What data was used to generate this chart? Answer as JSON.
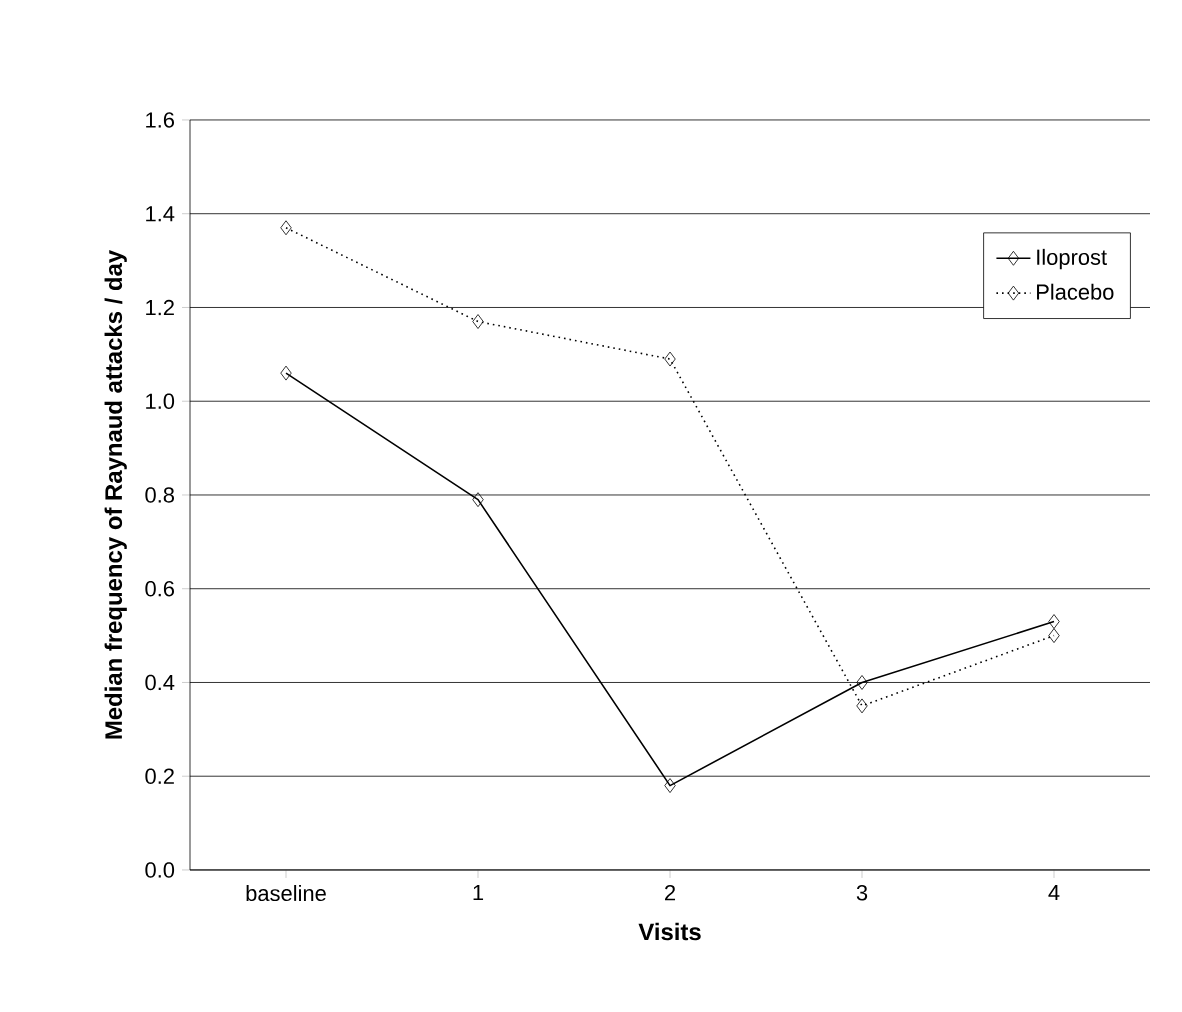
{
  "chart_data": {
    "type": "line",
    "xlabel": "Visits",
    "ylabel": "Median frequency of Raynaud attacks / day",
    "categories": [
      "baseline",
      "1",
      "2",
      "3",
      "4"
    ],
    "series": [
      {
        "name": "Iloprost",
        "color": "#000000",
        "line_style": "solid",
        "values": [
          1.06,
          0.79,
          0.18,
          0.4,
          0.53
        ]
      },
      {
        "name": "Placebo",
        "color": "#000000",
        "line_style": "dotted",
        "values": [
          1.37,
          1.17,
          1.09,
          0.35,
          0.5
        ]
      }
    ],
    "ylim": [
      0,
      1.6
    ],
    "yticks": [
      {
        "value": 0,
        "label": "0.0"
      },
      0.2,
      0.4,
      0.6,
      0.8,
      {
        "value": 1,
        "label": "1.0"
      },
      1.2,
      1.4,
      1.6
    ],
    "grid": "y",
    "legend": "top right",
    "marker": "diamond"
  }
}
